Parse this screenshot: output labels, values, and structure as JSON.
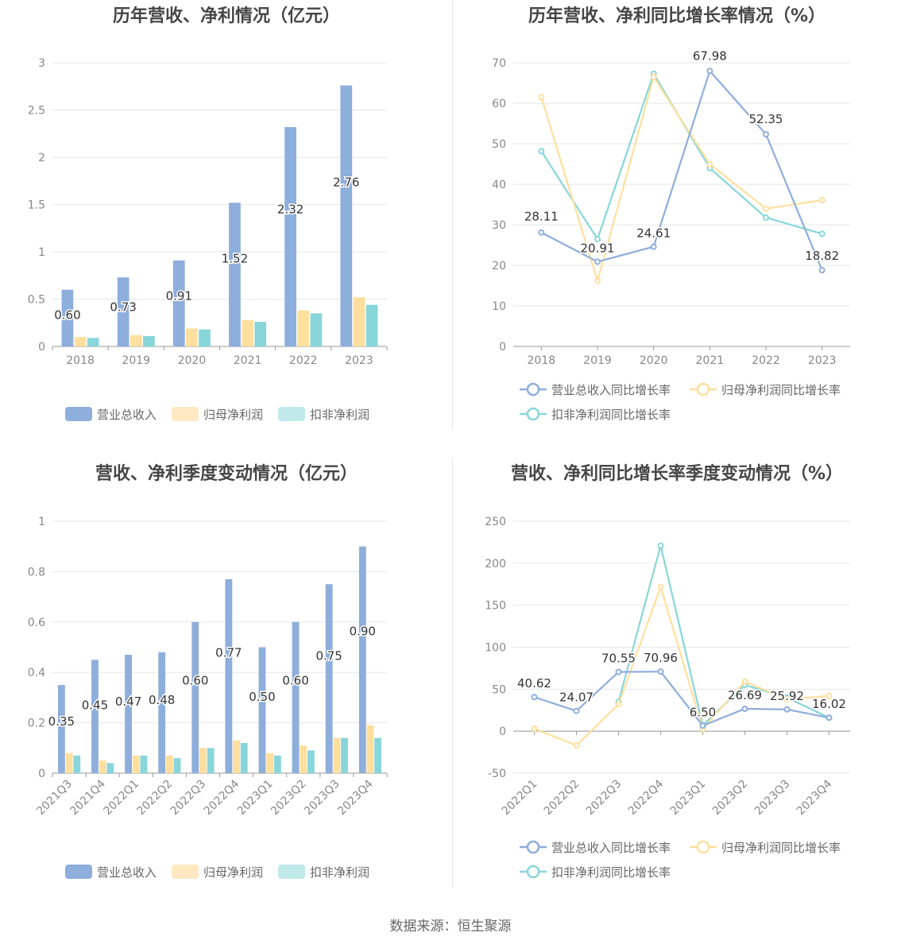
{
  "source_label": "数据来源：恒生聚源",
  "colors": {
    "revenue": "#8eaedb",
    "net_profit": "#ffdf9e",
    "deducted": "#88d6da",
    "revenue_legend": "#8eaedb",
    "net_legend": "#ffe8c2",
    "deducted_legend": "#c0e9ea"
  },
  "chart_data": [
    {
      "type": "bar",
      "title": "历年营收、净利情况（亿元）",
      "categories": [
        "2018",
        "2019",
        "2020",
        "2021",
        "2022",
        "2023"
      ],
      "yticks": [
        "0",
        "0.5",
        "1",
        "1.5",
        "2",
        "2.5",
        "3"
      ],
      "ylim": [
        0,
        3
      ],
      "series": [
        {
          "name": "营业总收入",
          "values": [
            0.6,
            0.73,
            0.91,
            1.52,
            2.32,
            2.76
          ],
          "labels": [
            "0.60",
            "0.73",
            "0.91",
            "1.52",
            "2.32",
            "2.76"
          ]
        },
        {
          "name": "归母净利润",
          "values": [
            0.1,
            0.12,
            0.19,
            0.28,
            0.38,
            0.52
          ]
        },
        {
          "name": "扣非净利润",
          "values": [
            0.09,
            0.11,
            0.18,
            0.26,
            0.35,
            0.44
          ]
        }
      ],
      "legend": "bottom",
      "grid": true
    },
    {
      "type": "line",
      "title": "历年营收、净利同比增长率情况（%）",
      "categories": [
        "2018",
        "2019",
        "2020",
        "2021",
        "2022",
        "2023"
      ],
      "yticks": [
        "0",
        "10",
        "20",
        "30",
        "40",
        "50",
        "60",
        "70"
      ],
      "ylim": [
        0,
        70
      ],
      "series": [
        {
          "name": "营业总收入同比增长率",
          "values": [
            28.11,
            20.91,
            24.61,
            67.98,
            52.35,
            18.82
          ],
          "labels": [
            "28.11",
            "20.91",
            "24.61",
            "67.98",
            "52.35",
            "18.82"
          ]
        },
        {
          "name": "归母净利润同比增长率",
          "values": [
            61.5,
            16.2,
            66.5,
            45.0,
            34.0,
            36.1
          ]
        },
        {
          "name": "扣非净利润同比增长率",
          "values": [
            48.2,
            26.5,
            67.3,
            44.0,
            31.8,
            27.8
          ]
        }
      ],
      "legend": "bottom",
      "grid": true
    },
    {
      "type": "bar",
      "title": "营收、净利季度变动情况（亿元）",
      "categories": [
        "2021Q3",
        "2021Q4",
        "2022Q1",
        "2022Q2",
        "2022Q3",
        "2022Q4",
        "2023Q1",
        "2023Q2",
        "2023Q3",
        "2023Q4"
      ],
      "yticks": [
        "0",
        "0.2",
        "0.4",
        "0.6",
        "0.8",
        "1"
      ],
      "ylim": [
        0,
        1
      ],
      "series": [
        {
          "name": "营业总收入",
          "values": [
            0.35,
            0.45,
            0.47,
            0.48,
            0.6,
            0.77,
            0.5,
            0.6,
            0.75,
            0.9
          ],
          "labels": [
            "0.35",
            "0.45",
            "0.47",
            "0.48",
            "0.60",
            "0.77",
            "0.50",
            "0.60",
            "0.75",
            "0.90"
          ]
        },
        {
          "name": "归母净利润",
          "values": [
            0.08,
            0.05,
            0.07,
            0.07,
            0.1,
            0.13,
            0.08,
            0.11,
            0.14,
            0.19
          ]
        },
        {
          "name": "扣非净利润",
          "values": [
            0.07,
            0.04,
            0.07,
            0.06,
            0.1,
            0.12,
            0.07,
            0.09,
            0.14,
            0.14
          ]
        }
      ],
      "legend": "bottom",
      "grid": true
    },
    {
      "type": "line",
      "title": "营收、净利同比增长率季度变动情况（%）",
      "categories": [
        "2022Q1",
        "2022Q2",
        "2022Q3",
        "2022Q4",
        "2023Q1",
        "2023Q2",
        "2023Q3",
        "2023Q4"
      ],
      "yticks": [
        "-50",
        "0",
        "50",
        "100",
        "150",
        "200",
        "250"
      ],
      "ylim": [
        -50,
        250
      ],
      "series": [
        {
          "name": "营业总收入同比增长率",
          "values": [
            40.62,
            24.07,
            70.55,
            70.96,
            6.5,
            26.69,
            25.92,
            16.02
          ],
          "labels": [
            "40.62",
            "24.07",
            "70.55",
            "70.96",
            "6.50",
            "26.69",
            "25.92",
            "16.02"
          ]
        },
        {
          "name": "归母净利润同比增长率",
          "values": [
            3,
            -17,
            32,
            172,
            3,
            59,
            38,
            42
          ]
        },
        {
          "name": "扣非净利润同比增长率",
          "values": [
            null,
            null,
            35,
            221,
            7,
            55,
            40,
            16
          ]
        }
      ],
      "legend": "bottom",
      "grid": true
    }
  ]
}
